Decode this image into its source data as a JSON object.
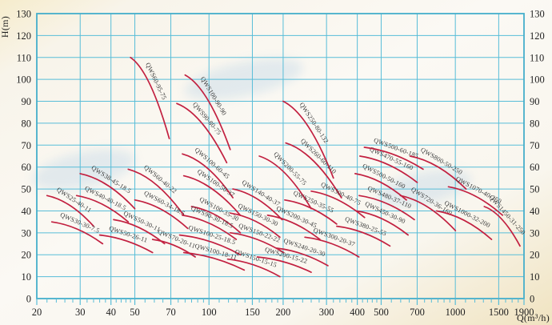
{
  "chart_data": {
    "type": "line",
    "title": "",
    "xlabel": "Q(m³/h)",
    "ylabel": "H(m)",
    "x_scale": "log",
    "x_range": [
      20,
      1900
    ],
    "y_range": [
      0,
      130
    ],
    "y_tick_step": 10,
    "x_major_ticks": [
      20,
      30,
      40,
      50,
      70,
      100,
      150,
      200,
      300,
      400,
      500,
      700,
      1000,
      1500,
      1900
    ],
    "x_minor_ticks": [
      22,
      24,
      26,
      28,
      32,
      34,
      36,
      38,
      42,
      44,
      46,
      48,
      55,
      60,
      65,
      75,
      80,
      85,
      90,
      95,
      110,
      120,
      130,
      140,
      160,
      170,
      180,
      190,
      220,
      240,
      260,
      280,
      320,
      340,
      360,
      380,
      420,
      440,
      460,
      480,
      550,
      600,
      650,
      750,
      800,
      850,
      900,
      950,
      1100,
      1200,
      1300,
      1400,
      1600,
      1700,
      1800
    ],
    "grid": true,
    "legend": "labels-along-curves",
    "colors": {
      "grid": "#58bdd8",
      "frame": "#45aecb",
      "curve": "#c22040",
      "text": "#1e1e1e",
      "curve_label": "#3a3a3a"
    },
    "series": [
      {
        "name": "QWS60-95-75",
        "points": [
          [
            48,
            110
          ],
          [
            69,
            73
          ]
        ]
      },
      {
        "name": "QWS100-90-90",
        "points": [
          [
            80,
            102
          ],
          [
            122,
            68
          ]
        ]
      },
      {
        "name": "QWS90-80-75",
        "points": [
          [
            74,
            89
          ],
          [
            118,
            62
          ]
        ]
      },
      {
        "name": "QWS250-80-132",
        "points": [
          [
            200,
            90
          ],
          [
            320,
            55
          ]
        ]
      },
      {
        "name": "QWS260-60-110",
        "points": [
          [
            205,
            71
          ],
          [
            345,
            46
          ]
        ]
      },
      {
        "name": "QWS200-55-75",
        "points": [
          [
            160,
            65
          ],
          [
            260,
            41
          ]
        ]
      },
      {
        "name": "QWS100-60-45",
        "points": [
          [
            78,
            66
          ],
          [
            125,
            46
          ]
        ]
      },
      {
        "name": "QWS100-50-37",
        "points": [
          [
            79,
            56
          ],
          [
            134,
            38
          ]
        ]
      },
      {
        "name": "QWS140-40-37",
        "points": [
          [
            125,
            50
          ],
          [
            198,
            36
          ]
        ]
      },
      {
        "name": "QWS38-45-18.5",
        "points": [
          [
            30,
            57
          ],
          [
            50,
            41
          ]
        ]
      },
      {
        "name": "QWS40-40-18.5",
        "points": [
          [
            29,
            47
          ],
          [
            47,
            35
          ]
        ]
      },
      {
        "name": "QWS60-40-22",
        "points": [
          [
            47,
            59
          ],
          [
            79,
            38
          ]
        ]
      },
      {
        "name": "QWS60-34-18.5",
        "points": [
          [
            50,
            45
          ],
          [
            82,
            32
          ]
        ]
      },
      {
        "name": "QWS25-40-11",
        "points": [
          [
            22,
            47
          ],
          [
            34,
            33
          ]
        ]
      },
      {
        "name": "QWS30-30-7.5",
        "points": [
          [
            23,
            35
          ],
          [
            37,
            25
          ]
        ]
      },
      {
        "name": "QWS50-30-11",
        "points": [
          [
            41,
            36
          ],
          [
            66,
            25
          ]
        ]
      },
      {
        "name": "QWS50-26-11",
        "points": [
          [
            36,
            29
          ],
          [
            59,
            21
          ]
        ]
      },
      {
        "name": "QWS70-20-11",
        "points": [
          [
            59,
            27
          ],
          [
            88,
            19
          ]
        ]
      },
      {
        "name": "QWS100-35-30",
        "points": [
          [
            85,
            42
          ],
          [
            134,
            30
          ]
        ]
      },
      {
        "name": "QWS90-30-18.5",
        "points": [
          [
            78,
            38
          ],
          [
            129,
            27
          ]
        ]
      },
      {
        "name": "QWS100-25-18.5",
        "points": [
          [
            76,
            29
          ],
          [
            134,
            20
          ]
        ]
      },
      {
        "name": "QWS100-18-11",
        "points": [
          [
            79,
            21
          ],
          [
            139,
            13
          ]
        ]
      },
      {
        "name": "QWS150-30-30",
        "points": [
          [
            122,
            39
          ],
          [
            194,
            28
          ]
        ]
      },
      {
        "name": "QWS150-22-22",
        "points": [
          [
            122,
            30
          ],
          [
            201,
            21
          ]
        ]
      },
      {
        "name": "QWS150-15-15",
        "points": [
          [
            119,
            18
          ],
          [
            194,
            10
          ]
        ]
      },
      {
        "name": "QWS200-15-22",
        "points": [
          [
            157,
            19
          ],
          [
            260,
            12
          ]
        ]
      },
      {
        "name": "QWS200-30-45",
        "points": [
          [
            173,
            38
          ],
          [
            282,
            27
          ]
        ]
      },
      {
        "name": "QWS250-35-55",
        "points": [
          [
            203,
            45
          ],
          [
            330,
            34
          ]
        ]
      },
      {
        "name": "QWS300-40-75",
        "points": [
          [
            260,
            49
          ],
          [
            428,
            37
          ]
        ]
      },
      {
        "name": "QWS300-20-37",
        "points": [
          [
            245,
            28
          ],
          [
            406,
            19
          ]
        ]
      },
      {
        "name": "QWS240-20-30",
        "points": [
          [
            188,
            23
          ],
          [
            304,
            15
          ]
        ]
      },
      {
        "name": "QWS380-25-55",
        "points": [
          [
            330,
            33
          ],
          [
            543,
            24
          ]
        ]
      },
      {
        "name": "QWS450-30-90",
        "points": [
          [
            397,
            40
          ],
          [
            643,
            29
          ]
        ]
      },
      {
        "name": "QWS480-37-110",
        "points": [
          [
            407,
            47
          ],
          [
            682,
            36
          ]
        ]
      },
      {
        "name": "QWS500-50-160",
        "points": [
          [
            392,
            57
          ],
          [
            633,
            45
          ]
        ]
      },
      {
        "name": "QWS470-55-160",
        "points": [
          [
            410,
            65
          ],
          [
            700,
            53
          ]
        ]
      },
      {
        "name": "QWS500-60-185",
        "points": [
          [
            427,
            69
          ],
          [
            740,
            59
          ]
        ]
      },
      {
        "name": "QWS800-50-250",
        "points": [
          [
            655,
            65
          ],
          [
            1106,
            50
          ]
        ]
      },
      {
        "name": "QWS720-36-160",
        "points": [
          [
            598,
            47
          ],
          [
            1001,
            31
          ]
        ]
      },
      {
        "name": "QWS1070-40-250",
        "points": [
          [
            937,
            51
          ],
          [
            1555,
            38
          ]
        ]
      },
      {
        "name": "QWS1000-32-200",
        "points": [
          [
            840,
            40
          ],
          [
            1404,
            27
          ]
        ]
      },
      {
        "name": "QWS1450-31-250",
        "points": [
          [
            1310,
            42
          ],
          [
            1830,
            24
          ]
        ]
      }
    ]
  }
}
